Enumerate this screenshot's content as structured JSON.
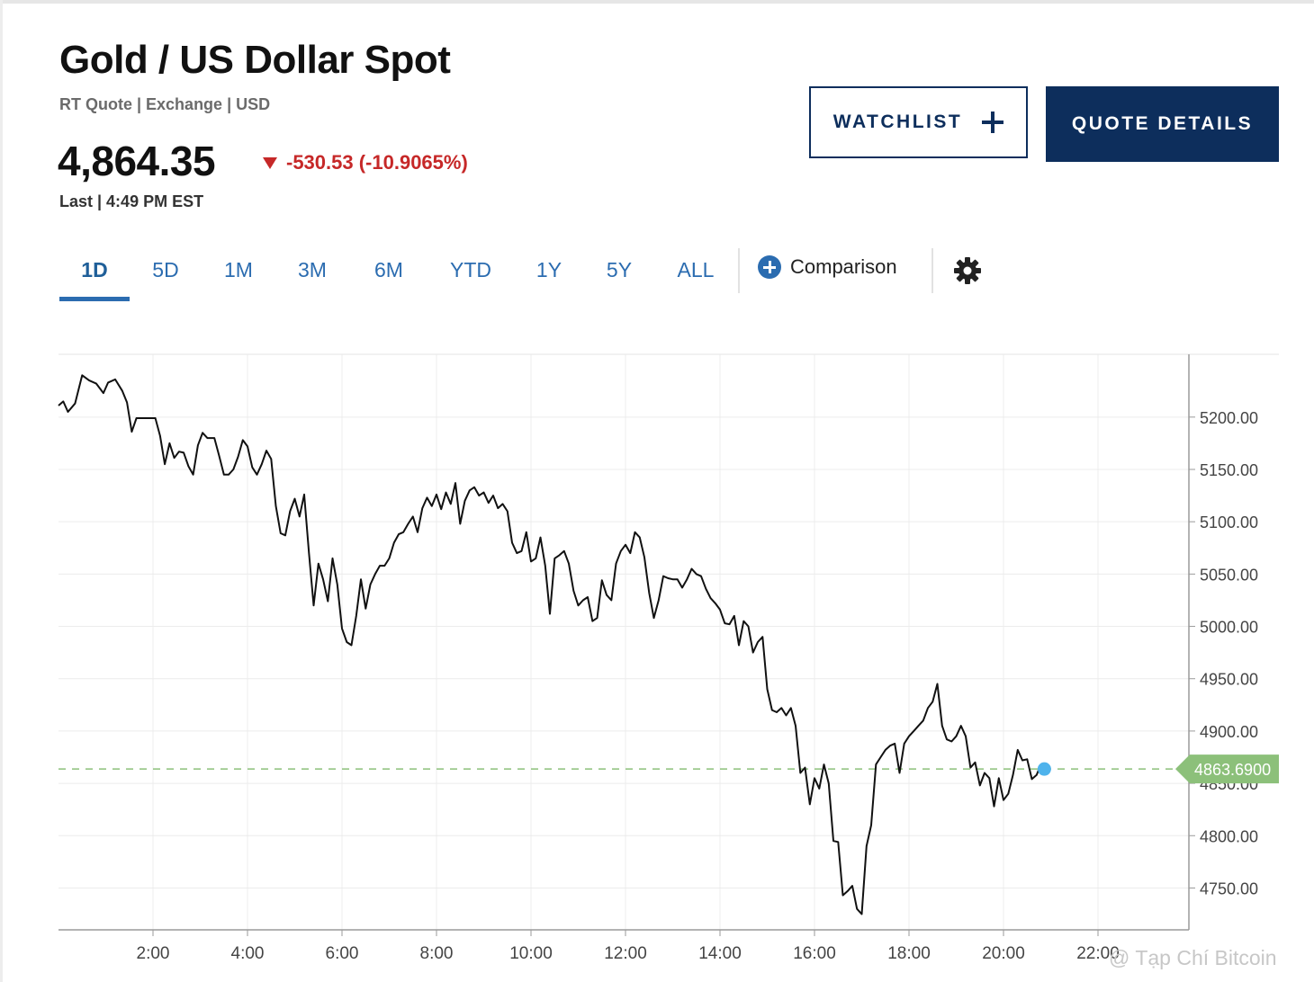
{
  "header": {
    "title": "Gold / US Dollar Spot",
    "quote_meta": "RT Quote | Exchange | USD",
    "price": "4,864.35",
    "change": "-530.53 (-10.9065%)",
    "last_meta": "Last | 4:49 PM EST"
  },
  "actions": {
    "watchlist_label": "WATCHLIST",
    "quote_details_label": "QUOTE DETAILS"
  },
  "range_tabs": {
    "items": [
      "1D",
      "5D",
      "1M",
      "3M",
      "6M",
      "YTD",
      "1Y",
      "5Y",
      "ALL"
    ],
    "selected": "1D",
    "comparison_label": "Comparison"
  },
  "colors": {
    "accent": "#2b6cb0",
    "navy": "#0d2e5c",
    "negative": "#c62828",
    "last_price_tag": "#8cc07a",
    "marker": "#4fb3ec"
  },
  "chart_data": {
    "type": "line",
    "x_tick_labels": [
      "2:00",
      "4:00",
      "6:00",
      "8:00",
      "10:00",
      "12:00",
      "14:00",
      "16:00",
      "18:00",
      "20:00",
      "22:00"
    ],
    "xlim_hours": [
      0,
      24
    ],
    "ylim": [
      4710,
      5260
    ],
    "y_ticks": [
      4750,
      4800,
      4850,
      4900,
      4950,
      5000,
      5050,
      5100,
      5150,
      5200
    ],
    "y_tick_labels": [
      "4750.00",
      "4800.00",
      "4850.00",
      "4900.00",
      "4950.00",
      "5000.00",
      "5050.00",
      "5100.00",
      "5150.00",
      "5200.00"
    ],
    "last_value": 4863.69,
    "last_value_label": "4863.6900",
    "grid": true,
    "series": [
      {
        "points": [
          [
            0.0,
            5211
          ],
          [
            0.1,
            5215
          ],
          [
            0.2,
            5205
          ],
          [
            0.35,
            5213
          ],
          [
            0.5,
            5240
          ],
          [
            0.65,
            5235
          ],
          [
            0.8,
            5232
          ],
          [
            0.95,
            5223
          ],
          [
            1.05,
            5233
          ],
          [
            1.2,
            5236
          ],
          [
            1.35,
            5225
          ],
          [
            1.45,
            5214
          ],
          [
            1.55,
            5186
          ],
          [
            1.65,
            5199
          ],
          [
            1.8,
            5199
          ],
          [
            1.95,
            5199
          ],
          [
            2.05,
            5199
          ],
          [
            2.15,
            5182
          ],
          [
            2.25,
            5155
          ],
          [
            2.35,
            5175
          ],
          [
            2.45,
            5161
          ],
          [
            2.55,
            5167
          ],
          [
            2.65,
            5166
          ],
          [
            2.75,
            5153
          ],
          [
            2.85,
            5145
          ],
          [
            2.95,
            5173
          ],
          [
            3.05,
            5185
          ],
          [
            3.15,
            5180
          ],
          [
            3.3,
            5180
          ],
          [
            3.4,
            5163
          ],
          [
            3.5,
            5145
          ],
          [
            3.6,
            5145
          ],
          [
            3.7,
            5150
          ],
          [
            3.8,
            5162
          ],
          [
            3.9,
            5178
          ],
          [
            4.0,
            5172
          ],
          [
            4.1,
            5152
          ],
          [
            4.2,
            5145
          ],
          [
            4.3,
            5155
          ],
          [
            4.4,
            5168
          ],
          [
            4.5,
            5160
          ],
          [
            4.6,
            5115
          ],
          [
            4.7,
            5089
          ],
          [
            4.8,
            5087
          ],
          [
            4.9,
            5110
          ],
          [
            5.0,
            5122
          ],
          [
            5.1,
            5105
          ],
          [
            5.2,
            5126
          ],
          [
            5.3,
            5070
          ],
          [
            5.4,
            5020
          ],
          [
            5.5,
            5060
          ],
          [
            5.6,
            5045
          ],
          [
            5.7,
            5024
          ],
          [
            5.8,
            5065
          ],
          [
            5.9,
            5040
          ],
          [
            6.0,
            4998
          ],
          [
            6.1,
            4985
          ],
          [
            6.2,
            4982
          ],
          [
            6.3,
            5010
          ],
          [
            6.4,
            5045
          ],
          [
            6.5,
            5017
          ],
          [
            6.6,
            5040
          ],
          [
            6.7,
            5050
          ],
          [
            6.8,
            5058
          ],
          [
            6.9,
            5058
          ],
          [
            7.0,
            5065
          ],
          [
            7.1,
            5080
          ],
          [
            7.2,
            5088
          ],
          [
            7.3,
            5090
          ],
          [
            7.4,
            5098
          ],
          [
            7.5,
            5105
          ],
          [
            7.6,
            5090
          ],
          [
            7.7,
            5113
          ],
          [
            7.8,
            5123
          ],
          [
            7.9,
            5115
          ],
          [
            8.0,
            5126
          ],
          [
            8.1,
            5112
          ],
          [
            8.2,
            5128
          ],
          [
            8.3,
            5117
          ],
          [
            8.4,
            5137
          ],
          [
            8.5,
            5098
          ],
          [
            8.6,
            5120
          ],
          [
            8.7,
            5130
          ],
          [
            8.8,
            5133
          ],
          [
            8.9,
            5125
          ],
          [
            9.0,
            5128
          ],
          [
            9.1,
            5118
          ],
          [
            9.2,
            5125
          ],
          [
            9.3,
            5113
          ],
          [
            9.4,
            5117
          ],
          [
            9.5,
            5110
          ],
          [
            9.6,
            5080
          ],
          [
            9.7,
            5070
          ],
          [
            9.8,
            5072
          ],
          [
            9.9,
            5090
          ],
          [
            10.0,
            5062
          ],
          [
            10.1,
            5065
          ],
          [
            10.2,
            5085
          ],
          [
            10.3,
            5058
          ],
          [
            10.4,
            5012
          ],
          [
            10.5,
            5065
          ],
          [
            10.6,
            5068
          ],
          [
            10.7,
            5072
          ],
          [
            10.8,
            5060
          ],
          [
            10.9,
            5034
          ],
          [
            11.0,
            5020
          ],
          [
            11.1,
            5025
          ],
          [
            11.2,
            5028
          ],
          [
            11.3,
            5005
          ],
          [
            11.4,
            5008
          ],
          [
            11.5,
            5044
          ],
          [
            11.6,
            5030
          ],
          [
            11.7,
            5025
          ],
          [
            11.8,
            5060
          ],
          [
            11.9,
            5072
          ],
          [
            12.0,
            5078
          ],
          [
            12.1,
            5070
          ],
          [
            12.2,
            5090
          ],
          [
            12.3,
            5085
          ],
          [
            12.4,
            5066
          ],
          [
            12.5,
            5032
          ],
          [
            12.6,
            5008
          ],
          [
            12.7,
            5025
          ],
          [
            12.8,
            5048
          ],
          [
            12.9,
            5046
          ],
          [
            13.0,
            5045
          ],
          [
            13.1,
            5045
          ],
          [
            13.2,
            5037
          ],
          [
            13.3,
            5045
          ],
          [
            13.4,
            5055
          ],
          [
            13.5,
            5050
          ],
          [
            13.6,
            5048
          ],
          [
            13.7,
            5036
          ],
          [
            13.8,
            5027
          ],
          [
            13.9,
            5022
          ],
          [
            14.0,
            5016
          ],
          [
            14.1,
            5003
          ],
          [
            14.2,
            5002
          ],
          [
            14.3,
            5010
          ],
          [
            14.4,
            4982
          ],
          [
            14.5,
            5005
          ],
          [
            14.6,
            5000
          ],
          [
            14.7,
            4975
          ],
          [
            14.8,
            4985
          ],
          [
            14.9,
            4990
          ],
          [
            15.0,
            4940
          ],
          [
            15.1,
            4920
          ],
          [
            15.2,
            4918
          ],
          [
            15.3,
            4922
          ],
          [
            15.4,
            4915
          ],
          [
            15.5,
            4922
          ],
          [
            15.6,
            4905
          ],
          [
            15.7,
            4860
          ],
          [
            15.8,
            4865
          ],
          [
            15.9,
            4830
          ],
          [
            16.0,
            4855
          ],
          [
            16.1,
            4845
          ],
          [
            16.2,
            4868
          ],
          [
            16.3,
            4850
          ],
          [
            16.4,
            4795
          ],
          [
            16.5,
            4794
          ],
          [
            16.6,
            4743
          ],
          [
            16.7,
            4747
          ],
          [
            16.8,
            4752
          ],
          [
            16.9,
            4730
          ],
          [
            17.0,
            4725
          ],
          [
            17.1,
            4790
          ],
          [
            17.2,
            4810
          ],
          [
            17.3,
            4868
          ],
          [
            17.4,
            4875
          ],
          [
            17.5,
            4882
          ],
          [
            17.6,
            4886
          ],
          [
            17.7,
            4888
          ],
          [
            17.8,
            4860
          ],
          [
            17.9,
            4888
          ],
          [
            18.0,
            4895
          ],
          [
            18.1,
            4900
          ],
          [
            18.2,
            4905
          ],
          [
            18.3,
            4910
          ],
          [
            18.4,
            4922
          ],
          [
            18.5,
            4928
          ],
          [
            18.6,
            4945
          ],
          [
            18.7,
            4905
          ],
          [
            18.8,
            4892
          ],
          [
            18.9,
            4890
          ],
          [
            19.0,
            4895
          ],
          [
            19.1,
            4905
          ],
          [
            19.2,
            4895
          ],
          [
            19.3,
            4865
          ],
          [
            19.4,
            4870
          ],
          [
            19.5,
            4848
          ],
          [
            19.6,
            4860
          ],
          [
            19.7,
            4855
          ],
          [
            19.8,
            4828
          ],
          [
            19.9,
            4855
          ],
          [
            20.0,
            4834
          ],
          [
            20.1,
            4840
          ],
          [
            20.2,
            4858
          ],
          [
            20.3,
            4882
          ],
          [
            20.4,
            4872
          ],
          [
            20.5,
            4873
          ],
          [
            20.6,
            4854
          ],
          [
            20.7,
            4858
          ],
          [
            20.75,
            4863.69
          ]
        ]
      }
    ]
  },
  "watermark": "@ Tạp Chí Bitcoin"
}
